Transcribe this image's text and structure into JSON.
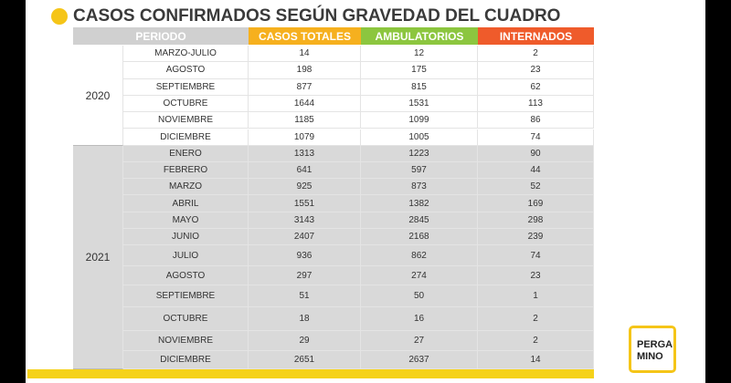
{
  "header": {
    "title": "CASOS CONFIRMADOS SEGÚN GRAVEDAD DEL CUADRO"
  },
  "table": {
    "headers": [
      "PERIODO",
      "CASOS TOTALES",
      "AMBULATORIOS",
      "INTERNADOS"
    ],
    "groups": [
      {
        "year": "2020",
        "rows": [
          [
            "MARZO-JULIO",
            14,
            12,
            2
          ],
          [
            "AGOSTO",
            198,
            175,
            23
          ],
          [
            "SEPTIEMBRE",
            877,
            815,
            62
          ],
          [
            "OCTUBRE",
            1644,
            1531,
            113
          ],
          [
            "NOVIEMBRE",
            1185,
            1099,
            86
          ],
          [
            "DICIEMBRE",
            1079,
            1005,
            74
          ]
        ]
      },
      {
        "year": "2021",
        "rows": [
          [
            "ENERO",
            1313,
            1223,
            90
          ],
          [
            "FEBRERO",
            641,
            597,
            44
          ],
          [
            "MARZO",
            925,
            873,
            52
          ],
          [
            "ABRIL",
            1551,
            1382,
            169
          ],
          [
            "MAYO",
            3143,
            2845,
            298
          ],
          [
            "JUNIO",
            2407,
            2168,
            239
          ],
          [
            "JULIO",
            936,
            862,
            74
          ],
          [
            "AGOSTO",
            297,
            274,
            23
          ],
          [
            "SEPTIEMBRE",
            51,
            50,
            1
          ],
          [
            "OCTUBRE",
            18,
            16,
            2
          ],
          [
            "NOVIEMBRE",
            29,
            27,
            2
          ],
          [
            "DICIEMBRE",
            2651,
            2637,
            14
          ]
        ]
      }
    ]
  },
  "logo": {
    "lines": [
      "PERGA",
      "MINO"
    ]
  }
}
